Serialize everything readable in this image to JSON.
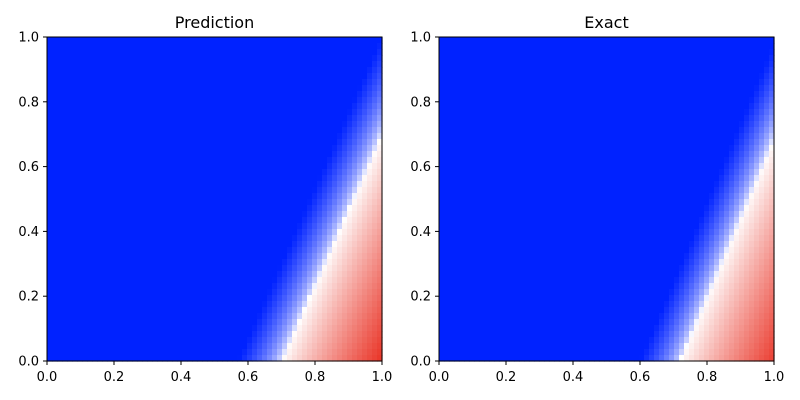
{
  "chart_data": [
    {
      "type": "heatmap",
      "title": "Prediction",
      "xlabel": "",
      "ylabel": "",
      "xlim": [
        0.0,
        1.0
      ],
      "ylim": [
        0.0,
        1.0
      ],
      "x_ticks": [
        "0.0",
        "0.2",
        "0.4",
        "0.6",
        "0.8",
        "1.0"
      ],
      "y_ticks": [
        "0.0",
        "0.2",
        "0.4",
        "0.6",
        "0.8",
        "1.0"
      ],
      "colormap": [
        "#0022ff",
        "#ffffff",
        "#e8281a"
      ],
      "value_range": [
        -1,
        1
      ],
      "field": "value rises toward the lower-right corner; white (zero) contour runs from about (0.70, 0.0) to (1.0, 0.70)",
      "grid": false
    },
    {
      "type": "heatmap",
      "title": "Exact",
      "xlabel": "",
      "ylabel": "",
      "xlim": [
        0.0,
        1.0
      ],
      "ylim": [
        0.0,
        1.0
      ],
      "x_ticks": [
        "0.0",
        "0.2",
        "0.4",
        "0.6",
        "0.8",
        "1.0"
      ],
      "y_ticks": [
        "0.0",
        "0.2",
        "0.4",
        "0.6",
        "0.8",
        "1.0"
      ],
      "colormap": [
        "#0022ff",
        "#ffffff",
        "#e8281a"
      ],
      "value_range": [
        -1,
        1
      ],
      "field": "value rises toward the lower-right corner; white (zero) contour runs from about (0.72, 0.0) to (1.0, 0.70)",
      "grid": false
    }
  ]
}
